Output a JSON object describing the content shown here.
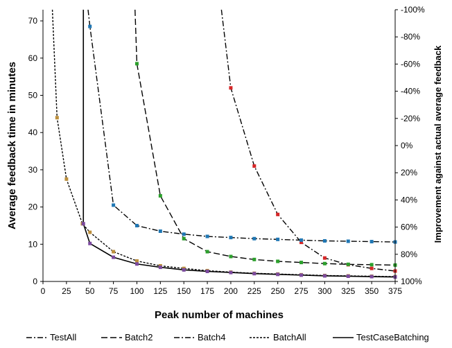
{
  "chart_data": {
    "type": "line",
    "xlabel": "Peak number of machines",
    "ylabel": "Average feedback time in minutes",
    "y2label": "Improvement against actual average feedback",
    "xlim": [
      0,
      375
    ],
    "ylim": [
      0,
      73
    ],
    "x_ticks": [
      0,
      25,
      50,
      75,
      100,
      125,
      150,
      175,
      200,
      225,
      250,
      275,
      300,
      325,
      350,
      375
    ],
    "y_ticks": [
      0,
      10,
      20,
      30,
      40,
      50,
      60,
      70
    ],
    "y2_ticks": [
      "-100%",
      "-80%",
      "-60%",
      "-40%",
      "-20%",
      "0%",
      "20%",
      "40%",
      "60%",
      "80%",
      "100%"
    ],
    "grid": false,
    "legend_position": "bottom",
    "series": [
      {
        "name": "TestAll",
        "dash": "8,3,2,3",
        "marker_color": "#d62728",
        "points": [
          [
            190,
            73
          ],
          [
            200,
            52
          ],
          [
            225,
            31
          ],
          [
            250,
            18
          ],
          [
            275,
            10.5
          ],
          [
            300,
            6.3
          ],
          [
            325,
            4.5
          ],
          [
            350,
            3.5
          ],
          [
            375,
            2.8
          ]
        ]
      },
      {
        "name": "Batch2",
        "dash": "9,4",
        "marker_color": "#2ca02c",
        "points": [
          [
            98,
            73
          ],
          [
            100,
            58.5
          ],
          [
            125,
            23
          ],
          [
            150,
            11.5
          ],
          [
            175,
            8
          ],
          [
            200,
            6.7
          ],
          [
            225,
            5.9
          ],
          [
            250,
            5.4
          ],
          [
            275,
            5.1
          ],
          [
            300,
            4.8
          ],
          [
            325,
            4.6
          ],
          [
            350,
            4.5
          ],
          [
            375,
            4.4
          ]
        ]
      },
      {
        "name": "Batch4",
        "dash": "8,3,2,3",
        "marker_color": "#1f77b4",
        "points": [
          [
            48,
            73
          ],
          [
            50,
            68.5
          ],
          [
            75,
            20.5
          ],
          [
            100,
            15
          ],
          [
            125,
            13.5
          ],
          [
            150,
            12.7
          ],
          [
            175,
            12.1
          ],
          [
            200,
            11.8
          ],
          [
            225,
            11.5
          ],
          [
            250,
            11.3
          ],
          [
            275,
            11.1
          ],
          [
            300,
            10.9
          ],
          [
            325,
            10.8
          ],
          [
            350,
            10.7
          ],
          [
            375,
            10.6
          ]
        ]
      },
      {
        "name": "BatchAll",
        "dash": "3,2",
        "marker_color": "#bc8f3c",
        "points": [
          [
            10,
            73
          ],
          [
            15,
            44
          ],
          [
            25,
            27.5
          ],
          [
            42,
            15.5
          ],
          [
            50,
            13.2
          ],
          [
            75,
            8
          ],
          [
            100,
            5.5
          ],
          [
            125,
            4.2
          ],
          [
            150,
            3.5
          ],
          [
            175,
            2.9
          ],
          [
            200,
            2.5
          ],
          [
            225,
            2.2
          ],
          [
            250,
            2
          ],
          [
            275,
            1.8
          ],
          [
            300,
            1.6
          ],
          [
            325,
            1.5
          ],
          [
            350,
            1.4
          ],
          [
            375,
            1.3
          ]
        ]
      },
      {
        "name": "TestCaseBatching",
        "dash": "",
        "marker_color": "#7b4a9e",
        "points": [
          [
            43,
            73
          ],
          [
            43,
            15.5
          ],
          [
            50,
            10.2
          ],
          [
            75,
            6.5
          ],
          [
            100,
            4.7
          ],
          [
            125,
            3.8
          ],
          [
            150,
            3.1
          ],
          [
            175,
            2.7
          ],
          [
            200,
            2.4
          ],
          [
            225,
            2.1
          ],
          [
            250,
            1.9
          ],
          [
            275,
            1.7
          ],
          [
            300,
            1.5
          ],
          [
            325,
            1.4
          ],
          [
            350,
            1.3
          ],
          [
            375,
            1.2
          ]
        ]
      }
    ]
  }
}
